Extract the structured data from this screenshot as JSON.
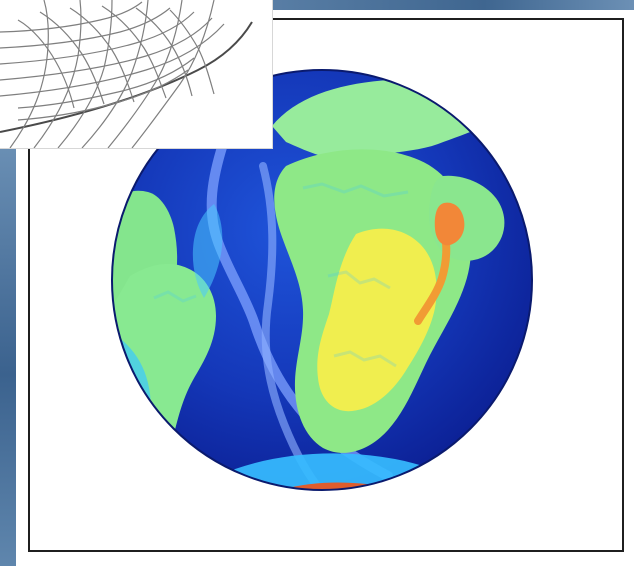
{
  "globe": {
    "colors": {
      "deep_ocean": "#0c1e9b",
      "ocean": "#1b46cf",
      "shallow": "#39b8ff",
      "land": "#8de88f",
      "highland": "#f2f04e",
      "mountain": "#f27e33",
      "hot": "#c5322b",
      "ridge": "#85a8ff"
    }
  },
  "wireframe": {
    "line_color": "#7f7f7f",
    "edge_color": "#4a4a4a"
  },
  "frame": {
    "border_color": "#1f1f1f",
    "background": "#ffffff"
  },
  "slide": {
    "background_color": "#4d769f"
  }
}
